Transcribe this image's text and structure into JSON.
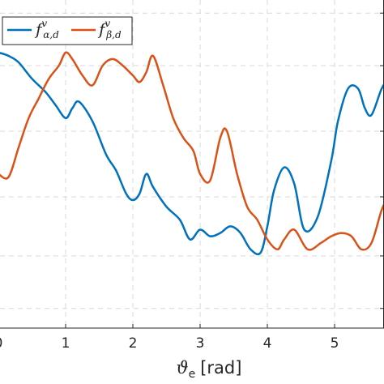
{
  "chart_data": {
    "type": "line",
    "xlabel_symbol": "ϑ",
    "xlabel_sub": "e",
    "xlabel_unit": "[rad]",
    "xlim": [
      0,
      5.8
    ],
    "ylim": [
      0,
      1
    ],
    "xticks": [
      0,
      1,
      2,
      3,
      4,
      5
    ],
    "xtick_labels": [
      "0",
      "1",
      "2",
      "3",
      "4",
      "5"
    ],
    "yticks": [
      0.06,
      0.22,
      0.4,
      0.6,
      0.8,
      0.96
    ],
    "grid": true,
    "legend_position": "top-left",
    "series": [
      {
        "name_main": "f",
        "name_sup": "v",
        "name_sub": "α,d",
        "color": "#0072BD",
        "x": [
          0,
          0.15,
          0.3,
          0.5,
          0.7,
          0.85,
          1.0,
          1.1,
          1.2,
          1.4,
          1.6,
          1.75,
          1.9,
          2.0,
          2.1,
          2.2,
          2.3,
          2.5,
          2.7,
          2.85,
          3.0,
          3.15,
          3.3,
          3.45,
          3.6,
          3.75,
          3.9,
          4.0,
          4.1,
          4.25,
          4.4,
          4.55,
          4.75,
          4.95,
          5.05,
          5.2,
          5.35,
          5.45,
          5.55,
          5.7,
          5.8
        ],
        "values": [
          0.84,
          0.83,
          0.81,
          0.76,
          0.72,
          0.68,
          0.64,
          0.67,
          0.69,
          0.63,
          0.53,
          0.48,
          0.41,
          0.39,
          0.41,
          0.47,
          0.43,
          0.37,
          0.33,
          0.27,
          0.3,
          0.28,
          0.29,
          0.31,
          0.29,
          0.24,
          0.23,
          0.31,
          0.42,
          0.49,
          0.44,
          0.3,
          0.34,
          0.51,
          0.63,
          0.73,
          0.73,
          0.67,
          0.65,
          0.73,
          0.76
        ]
      },
      {
        "name_main": "f",
        "name_sup": "v",
        "name_sub": "β,d",
        "color": "#D95319",
        "x": [
          0,
          0.15,
          0.3,
          0.45,
          0.6,
          0.75,
          0.9,
          1.0,
          1.1,
          1.25,
          1.4,
          1.55,
          1.7,
          1.85,
          2.0,
          2.1,
          2.2,
          2.3,
          2.45,
          2.6,
          2.75,
          2.9,
          3.0,
          3.15,
          3.3,
          3.4,
          3.55,
          3.7,
          3.85,
          4.0,
          4.15,
          4.25,
          4.4,
          4.6,
          4.8,
          4.95,
          5.1,
          5.25,
          5.4,
          5.55,
          5.7,
          5.8
        ],
        "values": [
          0.47,
          0.46,
          0.55,
          0.64,
          0.7,
          0.76,
          0.8,
          0.84,
          0.82,
          0.77,
          0.74,
          0.8,
          0.82,
          0.8,
          0.77,
          0.75,
          0.78,
          0.83,
          0.74,
          0.64,
          0.58,
          0.54,
          0.47,
          0.45,
          0.58,
          0.6,
          0.47,
          0.37,
          0.33,
          0.27,
          0.24,
          0.27,
          0.3,
          0.24,
          0.26,
          0.28,
          0.29,
          0.28,
          0.24,
          0.26,
          0.36,
          0.4
        ]
      }
    ]
  }
}
